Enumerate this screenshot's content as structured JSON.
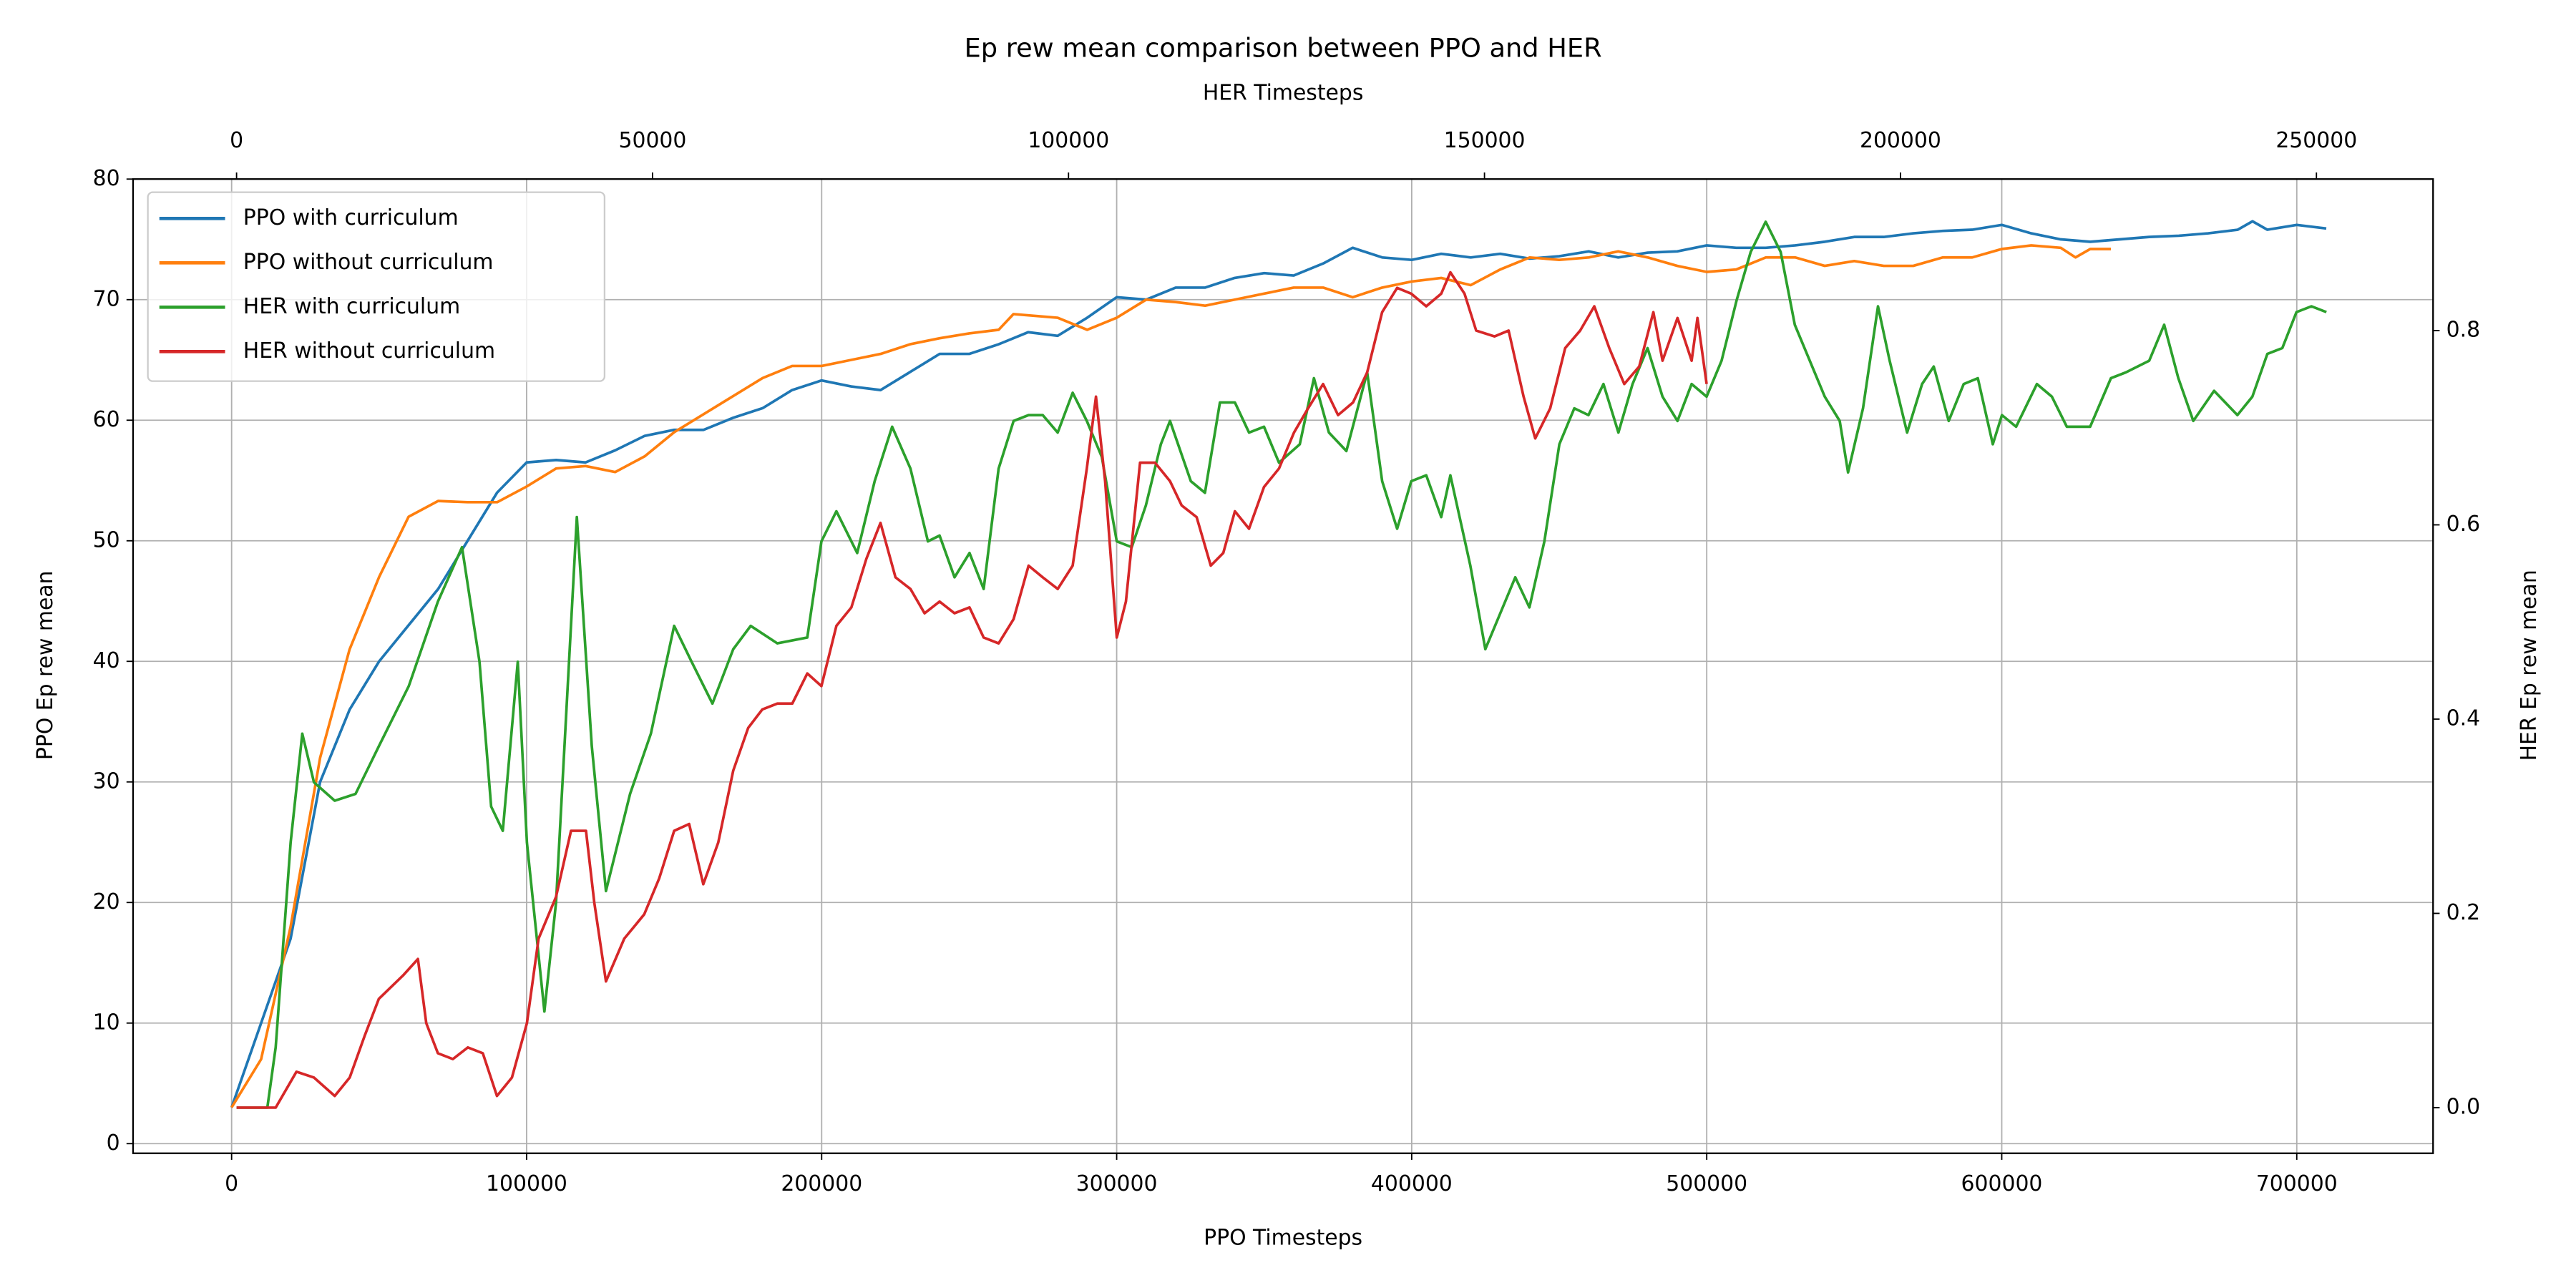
{
  "chart_data": {
    "type": "line",
    "title": "Ep rew mean comparison between PPO and HER",
    "x_label": "PPO Timesteps",
    "x2_label": "HER Timesteps",
    "y_label": "PPO Ep rew mean",
    "y2_label": "HER Ep rew mean",
    "xlim": [
      -33400,
      746200
    ],
    "x2lim": [
      -12440,
      264020
    ],
    "ylim": [
      -0.8,
      80
    ],
    "y2lim": [
      -0.047,
      0.956
    ],
    "xticks": [
      0,
      100000,
      200000,
      300000,
      400000,
      500000,
      600000,
      700000
    ],
    "x2ticks": [
      0,
      50000,
      100000,
      150000,
      200000,
      250000
    ],
    "yticks": [
      0,
      10,
      20,
      30,
      40,
      50,
      60,
      70,
      80
    ],
    "y2ticks": [
      {
        "value": 0,
        "label": "0.0"
      },
      0.2,
      0.4,
      0.6,
      0.8
    ],
    "grid": true,
    "legend": "upper left",
    "series": [
      {
        "name": "PPO with curriculum",
        "color": "#1f77b4",
        "x": [
          0,
          20000,
          30000,
          40000,
          50000,
          60000,
          70000,
          80000,
          90000,
          100000,
          110000,
          120000,
          130000,
          140000,
          150000,
          160000,
          170000,
          180000,
          190000,
          200000,
          210000,
          220000,
          230000,
          240000,
          250000,
          260000,
          270000,
          280000,
          290000,
          300000,
          310000,
          320000,
          330000,
          340000,
          350000,
          360000,
          370000,
          380000,
          390000,
          400000,
          410000,
          420000,
          430000,
          440000,
          450000,
          460000,
          470000,
          480000,
          490000,
          500000,
          510000,
          520000,
          530000,
          540000,
          550000,
          560000,
          570000,
          580000,
          590000,
          600000,
          610000,
          620000,
          630000,
          640000,
          650000,
          660000,
          670000,
          680000,
          685000,
          690000,
          700000,
          710000
        ],
        "values": [
          3,
          17,
          30,
          36,
          40,
          43,
          46,
          50,
          54,
          56.5,
          56.7,
          56.5,
          57.5,
          58.7,
          59.2,
          59.2,
          60.2,
          61,
          62.5,
          63.3,
          62.8,
          62.5,
          64,
          65.5,
          65.5,
          66.3,
          67.3,
          67,
          68.5,
          70.2,
          70,
          71,
          71,
          71.8,
          72.2,
          72,
          73,
          74.3,
          73.5,
          73.3,
          73.8,
          73.5,
          73.8,
          73.4,
          73.6,
          74,
          73.5,
          73.9,
          74,
          74.5,
          74.3,
          74.3,
          74.5,
          74.8,
          75.2,
          75.2,
          75.5,
          75.7,
          75.8,
          76.2,
          75.5,
          75,
          74.8,
          75,
          75.2,
          75.3,
          75.5,
          75.8,
          76.5,
          75.8,
          76.2,
          75.9
        ]
      },
      {
        "name": "PPO without curriculum",
        "color": "#ff7f0e",
        "x": [
          0,
          10000,
          20000,
          30000,
          40000,
          50000,
          60000,
          70000,
          80000,
          90000,
          100000,
          110000,
          120000,
          130000,
          140000,
          150000,
          160000,
          170000,
          180000,
          190000,
          200000,
          210000,
          220000,
          230000,
          240000,
          250000,
          260000,
          265000,
          280000,
          290000,
          300000,
          310000,
          320000,
          330000,
          340000,
          350000,
          360000,
          370000,
          380000,
          390000,
          400000,
          410000,
          420000,
          430000,
          440000,
          450000,
          460000,
          470000,
          480000,
          490000,
          500000,
          510000,
          520000,
          530000,
          540000,
          550000,
          560000,
          570000,
          580000,
          590000,
          600000,
          610000,
          620000,
          625000,
          630000,
          637000
        ],
        "values": [
          3,
          7,
          18,
          32,
          41,
          47,
          52,
          53.3,
          53.2,
          53.2,
          54.5,
          56,
          56.2,
          55.7,
          57,
          59,
          60.5,
          62,
          63.5,
          64.5,
          64.5,
          65,
          65.5,
          66.3,
          66.8,
          67.2,
          67.5,
          68.8,
          68.5,
          67.5,
          68.5,
          70,
          69.8,
          69.5,
          70,
          70.5,
          71,
          71,
          70.2,
          71,
          71.5,
          71.8,
          71.2,
          72.5,
          73.5,
          73.3,
          73.5,
          74,
          73.5,
          72.8,
          72.3,
          72.5,
          73.5,
          73.5,
          72.8,
          73.2,
          72.8,
          72.8,
          73.5,
          73.5,
          74.2,
          74.5,
          74.3,
          73.5,
          74.2,
          74.2
        ]
      },
      {
        "name": "HER with curriculum",
        "color": "#2ca02c",
        "axis": "y2",
        "x_axis": "x2",
        "x": [
          0,
          3700,
          4700,
          6500,
          7900,
          9300,
          11800,
          14300,
          17100,
          20700,
          24200,
          27100,
          29200,
          30600,
          32000,
          33800,
          34900,
          37000,
          38400,
          40900,
          42700,
          44400,
          47300,
          49800,
          52600,
          54700,
          57200,
          59700,
          61800,
          65000,
          68600,
          70300,
          72100,
          74600,
          76700,
          78800,
          81000,
          83100,
          84500,
          86300,
          88100,
          89800,
          91600,
          93400,
          95200,
          96900,
          98700,
          100500,
          102200,
          104000,
          105800,
          107600,
          109300,
          111100,
          112200,
          114700,
          116400,
          118200,
          120000,
          121700,
          123500,
          125300,
          127800,
          129500,
          131300,
          133400,
          135900,
          137700,
          139500,
          141200,
          143000,
          144800,
          145900,
          148300,
          150100,
          151900,
          153700,
          155400,
          157200,
          159000,
          160800,
          162500,
          164300,
          166100,
          167800,
          169600,
          171400,
          173200,
          174900,
          176700,
          178500,
          180300,
          182000,
          183800,
          185600,
          187300,
          189100,
          190900,
          192700,
          193700,
          195500,
          197300,
          198700,
          200800,
          202600,
          204000,
          205800,
          207600,
          209300,
          211100,
          212200,
          213900,
          216400,
          218200,
          220000,
          222800,
          225300,
          227100,
          229900,
          231700,
          233400,
          235200,
          237700,
          240500,
          242300,
          244100,
          245900,
          247600,
          249400,
          251200
        ],
        "values": [
          0.0,
          0.0,
          0.062,
          0.273,
          0.385,
          0.335,
          0.316,
          0.323,
          0.372,
          0.434,
          0.521,
          0.577,
          0.459,
          0.31,
          0.285,
          0.459,
          0.273,
          0.099,
          0.211,
          0.608,
          0.372,
          0.223,
          0.323,
          0.385,
          0.496,
          0.459,
          0.416,
          0.472,
          0.496,
          0.478,
          0.484,
          0.583,
          0.614,
          0.571,
          0.645,
          0.701,
          0.658,
          0.583,
          0.589,
          0.546,
          0.571,
          0.534,
          0.658,
          0.707,
          0.713,
          0.713,
          0.695,
          0.736,
          0.707,
          0.67,
          0.583,
          0.577,
          0.62,
          0.683,
          0.707,
          0.645,
          0.633,
          0.726,
          0.726,
          0.695,
          0.701,
          0.664,
          0.683,
          0.751,
          0.695,
          0.676,
          0.757,
          0.645,
          0.596,
          0.645,
          0.651,
          0.608,
          0.651,
          0.558,
          0.472,
          0.509,
          0.546,
          0.515,
          0.583,
          0.683,
          0.72,
          0.713,
          0.745,
          0.695,
          0.745,
          0.782,
          0.732,
          0.707,
          0.745,
          0.732,
          0.769,
          0.831,
          0.881,
          0.912,
          0.881,
          0.806,
          0.769,
          0.732,
          0.707,
          0.654,
          0.72,
          0.825,
          0.769,
          0.695,
          0.745,
          0.763,
          0.707,
          0.745,
          0.751,
          0.683,
          0.713,
          0.701,
          0.745,
          0.732,
          0.701,
          0.701,
          0.751,
          0.757,
          0.769,
          0.806,
          0.751,
          0.707,
          0.738,
          0.713,
          0.732,
          0.776,
          0.782,
          0.819,
          0.825,
          0.819
        ]
      },
      {
        "name": "HER without curriculum",
        "color": "#d62728",
        "axis": "y2",
        "x_axis": "x2",
        "x": [
          0,
          4700,
          7200,
          9300,
          11800,
          13600,
          15400,
          17100,
          20000,
          21800,
          22800,
          24200,
          26000,
          27800,
          29600,
          31300,
          33100,
          34900,
          36300,
          38400,
          40200,
          42000,
          43000,
          44400,
          46600,
          49000,
          50800,
          52600,
          54400,
          56100,
          57900,
          59700,
          61500,
          63200,
          65000,
          66800,
          68600,
          70300,
          72100,
          73900,
          75700,
          77400,
          79200,
          81000,
          82700,
          84500,
          86300,
          88100,
          89800,
          91600,
          93400,
          95200,
          96900,
          98700,
          100500,
          102200,
          103300,
          104400,
          105800,
          106900,
          108600,
          110400,
          112200,
          113600,
          115400,
          117100,
          118600,
          120000,
          121700,
          123500,
          125300,
          127100,
          128800,
          130600,
          132400,
          134200,
          135900,
          137700,
          139500,
          141200,
          143000,
          144800,
          145900,
          147600,
          149000,
          151200,
          152900,
          154700,
          156100,
          157900,
          159700,
          161500,
          163200,
          165000,
          166800,
          168600,
          170300,
          171400,
          173200,
          174900,
          175600,
          176700
        ],
        "values": [
          0.0,
          0.0,
          0.037,
          0.031,
          0.012,
          0.031,
          0.074,
          0.112,
          0.136,
          0.153,
          0.087,
          0.056,
          0.05,
          0.062,
          0.056,
          0.012,
          0.031,
          0.087,
          0.174,
          0.217,
          0.285,
          0.285,
          0.211,
          0.13,
          0.174,
          0.199,
          0.236,
          0.285,
          0.292,
          0.23,
          0.273,
          0.347,
          0.391,
          0.41,
          0.416,
          0.416,
          0.447,
          0.434,
          0.496,
          0.515,
          0.565,
          0.602,
          0.546,
          0.534,
          0.509,
          0.521,
          0.509,
          0.515,
          0.484,
          0.478,
          0.503,
          0.558,
          0.546,
          0.534,
          0.558,
          0.658,
          0.732,
          0.645,
          0.484,
          0.521,
          0.664,
          0.664,
          0.645,
          0.62,
          0.608,
          0.558,
          0.571,
          0.614,
          0.596,
          0.639,
          0.658,
          0.695,
          0.72,
          0.745,
          0.713,
          0.726,
          0.757,
          0.819,
          0.844,
          0.838,
          0.825,
          0.838,
          0.86,
          0.838,
          0.8,
          0.794,
          0.8,
          0.732,
          0.689,
          0.72,
          0.782,
          0.8,
          0.825,
          0.782,
          0.745,
          0.763,
          0.819,
          0.769,
          0.813,
          0.769,
          0.813,
          0.745
        ]
      }
    ]
  }
}
